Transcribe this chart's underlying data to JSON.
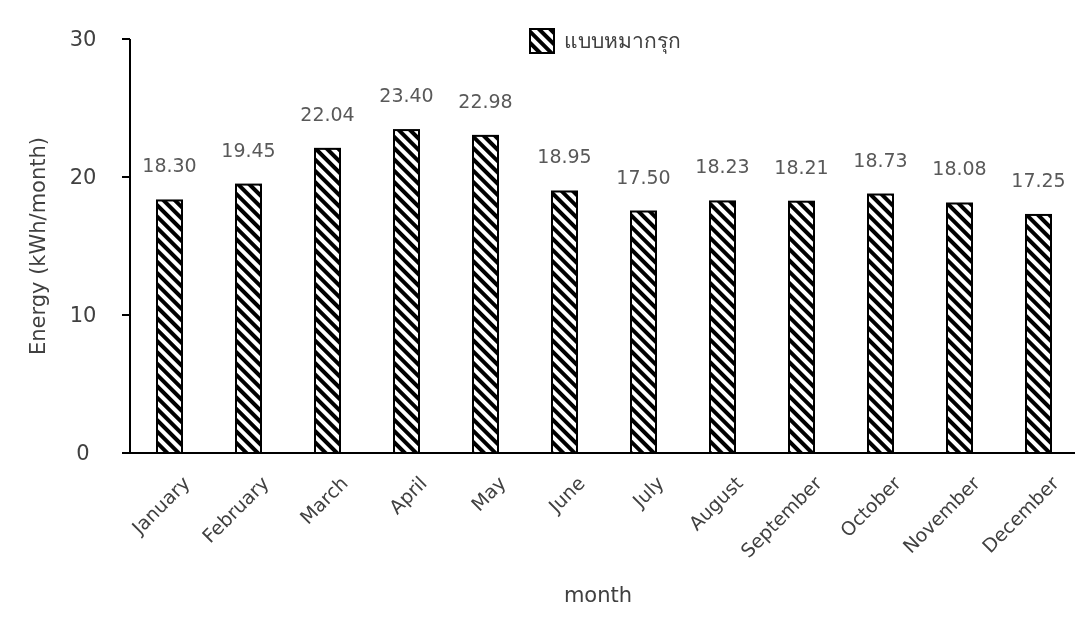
{
  "chart_data": {
    "type": "bar",
    "xlabel": "month",
    "ylabel": "Energy (kWh/month)",
    "categories": [
      "January",
      "February",
      "March",
      "April",
      "May",
      "June",
      "July",
      "August",
      "September",
      "October",
      "November",
      "December"
    ],
    "series": [
      {
        "name": "แบบหมากรุก",
        "color": "#000000",
        "values": [
          18.3,
          19.45,
          22.04,
          23.4,
          22.98,
          18.95,
          17.5,
          18.23,
          18.21,
          18.73,
          18.08,
          17.25
        ],
        "value_labels": [
          "18.30",
          "19.45",
          "22.04",
          "23.40",
          "22.98",
          "18.95",
          "17.50",
          "18.23",
          "18.21",
          "18.73",
          "18.08",
          "17.25"
        ]
      }
    ],
    "ylim": [
      0,
      30
    ],
    "yticks": [
      0,
      10,
      20,
      30
    ],
    "grid": false,
    "legend": "top"
  }
}
